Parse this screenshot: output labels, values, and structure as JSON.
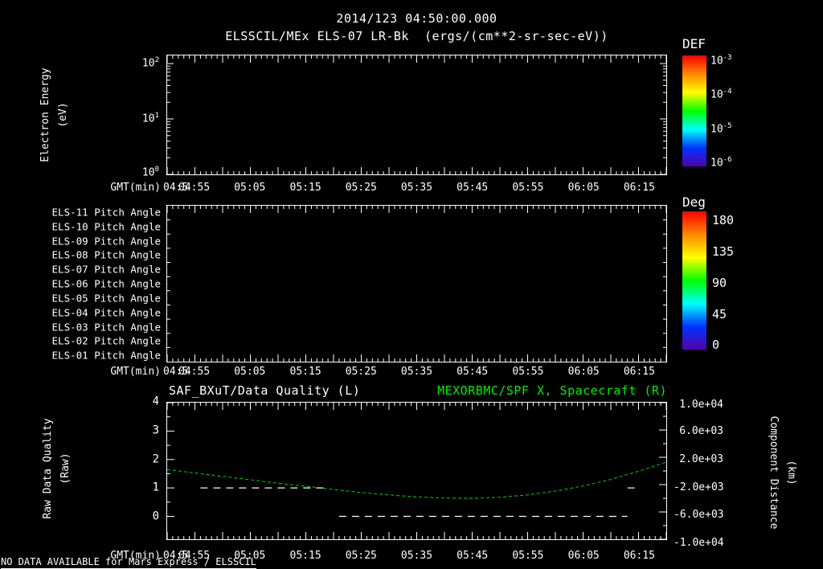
{
  "page": {
    "title_line1": "2014/123 04:50:00.000",
    "title_line2": "ELSSCIL/MEx ELS-07 LR-Bk  (ergs/(cm**2-sr-sec-eV))",
    "footer_note": "NO DATA AVAILABLE for Mars Express / ELSSCIL"
  },
  "colors": {
    "background": "#000000",
    "foreground": "#ffffff",
    "accent_green": "#00ee00",
    "curve_green": "#00b400",
    "rainbow": [
      "#ff0000",
      "#ff8800",
      "#ffff00",
      "#00ff00",
      "#00ffff",
      "#0033ff",
      "#5500aa"
    ]
  },
  "xaxis": {
    "label": "GMT(min)",
    "first_label": "04:5",
    "tick_labels": [
      "04:55",
      "05:05",
      "05:15",
      "05:25",
      "05:35",
      "05:45",
      "05:55",
      "06:05",
      "06:15"
    ],
    "start": "04:50",
    "end": "06:20"
  },
  "panel1": {
    "ylabel_line1": "Electron Energy",
    "ylabel_line2": "(eV)",
    "yticks": [
      {
        "base": "10",
        "exp": "2"
      },
      {
        "base": "10",
        "exp": "1"
      },
      {
        "base": "10",
        "exp": "0"
      }
    ],
    "colorbar": {
      "title": "DEF",
      "labels": [
        {
          "base": "10",
          "exp": "-3"
        },
        {
          "base": "10",
          "exp": "-4"
        },
        {
          "base": "10",
          "exp": "-5"
        },
        {
          "base": "10",
          "exp": "-6"
        }
      ]
    }
  },
  "panel2": {
    "rows": [
      "ELS-11 Pitch Angle",
      "ELS-10 Pitch Angle",
      "ELS-09 Pitch Angle",
      "ELS-08 Pitch Angle",
      "ELS-07 Pitch Angle",
      "ELS-06 Pitch Angle",
      "ELS-05 Pitch Angle",
      "ELS-04 Pitch Angle",
      "ELS-03 Pitch Angle",
      "ELS-02 Pitch Angle",
      "ELS-01 Pitch Angle"
    ],
    "colorbar": {
      "title": "Deg",
      "labels": [
        "180",
        "135",
        "90",
        "45",
        "0"
      ]
    }
  },
  "panel3": {
    "title_left": "SAF_BXuT/Data Quality (L)",
    "title_right": "MEXORBMC/SPF X, Spacecraft (R)",
    "ylabel_left_line1": "Raw Data Quality",
    "ylabel_left_line2": "(Raw)",
    "left_tick_labels": [
      "4",
      "3",
      "2",
      "1",
      "0"
    ],
    "right_tick_labels": [
      "1.0e+04",
      "6.0e+03",
      "2.0e+03",
      "-2.0e+03",
      "-6.0e+03",
      "-1.0e+04"
    ],
    "ylabel_right_line1": "Component Distance",
    "ylabel_right_line2": "(km)"
  },
  "chart_data": [
    {
      "type": "heatmap",
      "title": "ELSSCIL/MEx ELS-07 LR-Bk  (ergs/(cm**2-sr-sec-eV))",
      "xlabel": "GMT(min)",
      "x_start": "04:50",
      "x_end": "06:20",
      "x_tick_labels": [
        "04:55",
        "05:05",
        "05:15",
        "05:25",
        "05:35",
        "05:45",
        "05:55",
        "06:05",
        "06:15"
      ],
      "ylabel": "Electron Energy (eV)",
      "y_scale": "log",
      "ylim": [
        1,
        140
      ],
      "y_tick_labels": [
        "10^2",
        "10^1",
        "10^0"
      ],
      "colorbar_title": "DEF",
      "colorbar_scale": "log",
      "colorbar_tick_labels": [
        "10^-3",
        "10^-4",
        "10^-5",
        "10^-6"
      ],
      "values": [],
      "note": "panel is blank - no data available"
    },
    {
      "type": "heatmap",
      "xlabel": "GMT(min)",
      "x_start": "04:50",
      "x_end": "06:20",
      "x_tick_labels": [
        "04:55",
        "05:05",
        "05:15",
        "05:25",
        "05:35",
        "05:45",
        "05:55",
        "06:05",
        "06:15"
      ],
      "rows": [
        "ELS-11 Pitch Angle",
        "ELS-10 Pitch Angle",
        "ELS-09 Pitch Angle",
        "ELS-08 Pitch Angle",
        "ELS-07 Pitch Angle",
        "ELS-06 Pitch Angle",
        "ELS-05 Pitch Angle",
        "ELS-04 Pitch Angle",
        "ELS-03 Pitch Angle",
        "ELS-02 Pitch Angle",
        "ELS-01 Pitch Angle"
      ],
      "colorbar_title": "Deg",
      "colorbar_range": [
        0,
        180
      ],
      "colorbar_tick_labels": [
        "180",
        "135",
        "90",
        "45",
        "0"
      ],
      "values": [],
      "note": "panel is blank - no data available"
    },
    {
      "type": "line",
      "title_left": "SAF_BXuT/Data Quality (L)",
      "title_right": "MEXORBMC/SPF X, Spacecraft (R)",
      "xlabel": "GMT(min)",
      "x_start": "04:50",
      "x_end": "06:20",
      "x_tick_labels": [
        "04:55",
        "05:05",
        "05:15",
        "05:25",
        "05:35",
        "05:45",
        "05:55",
        "06:05",
        "06:15"
      ],
      "ylabel_left": "Raw Data Quality (Raw)",
      "left_ylim": [
        0,
        4
      ],
      "left_tick_labels": [
        "4",
        "3",
        "2",
        "1",
        "0"
      ],
      "ylabel_right": "Component Distance (km)",
      "right_ylim": [
        -10000,
        10000
      ],
      "right_tick_labels": [
        "1.0e+04",
        "6.0e+03",
        "2.0e+03",
        "-2.0e+03",
        "-6.0e+03",
        "-1.0e+04"
      ],
      "series": [
        {
          "name": "MEXORBMC/SPF X, Spacecraft",
          "axis": "right",
          "color": "#00b400",
          "style": "dashed",
          "x": [
            "04:50",
            "04:55",
            "05:00",
            "05:05",
            "05:10",
            "05:15",
            "05:20",
            "05:25",
            "05:30",
            "05:35",
            "05:40",
            "05:45",
            "05:50",
            "05:55",
            "06:00",
            "06:05",
            "06:10",
            "06:15",
            "06:20"
          ],
          "values_km": [
            200,
            -300,
            -800,
            -1300,
            -1800,
            -2250,
            -2700,
            -3150,
            -3500,
            -3800,
            -3950,
            -4000,
            -3850,
            -3500,
            -2950,
            -2200,
            -1250,
            -50,
            1300
          ]
        },
        {
          "name": "SAF_BXuT/Data Quality",
          "axis": "left",
          "color": "#ffffff",
          "style": "dashed",
          "segments": [
            {
              "from": "04:56",
              "to": "05:19",
              "value": 1
            },
            {
              "from": "05:21",
              "to": "06:13",
              "value": 0
            },
            {
              "from": "06:13",
              "to": "06:15",
              "value": 1
            }
          ]
        }
      ]
    }
  ]
}
